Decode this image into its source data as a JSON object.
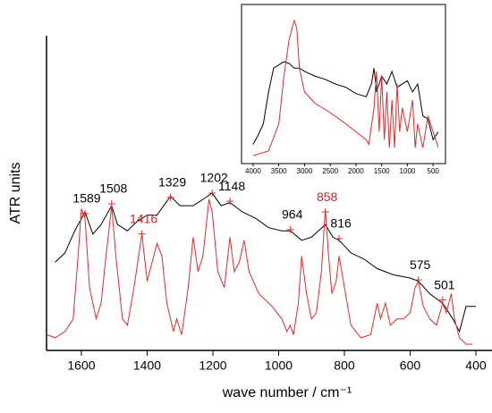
{
  "chart_data": [
    {
      "type": "line",
      "xlabel": "wave number / cm⁻¹",
      "ylabel": "ATR units",
      "xlim": [
        1706,
        351
      ],
      "ylim": [
        0,
        1
      ],
      "xticks": [
        1600,
        1400,
        1200,
        1000,
        800,
        600,
        400
      ],
      "series": [
        {
          "color": "#000000",
          "x": [
            1680,
            1650,
            1620,
            1589,
            1565,
            1540,
            1508,
            1490,
            1460,
            1430,
            1400,
            1370,
            1329,
            1300,
            1260,
            1230,
            1202,
            1175,
            1148,
            1110,
            1070,
            1030,
            990,
            964,
            930,
            900,
            858,
            835,
            816,
            780,
            740,
            700,
            650,
            600,
            575,
            540,
            501,
            470,
            450,
            430,
            400
          ],
          "values": [
            0.28,
            0.31,
            0.38,
            0.44,
            0.37,
            0.4,
            0.46,
            0.4,
            0.38,
            0.41,
            0.43,
            0.43,
            0.49,
            0.46,
            0.46,
            0.48,
            0.5,
            0.46,
            0.47,
            0.44,
            0.42,
            0.39,
            0.38,
            0.38,
            0.35,
            0.36,
            0.4,
            0.36,
            0.35,
            0.31,
            0.29,
            0.26,
            0.24,
            0.23,
            0.22,
            0.18,
            0.15,
            0.1,
            0.06,
            0.14,
            0.14
          ]
        },
        {
          "color": "#e8282b",
          "x": [
            1705,
            1680,
            1650,
            1625,
            1610,
            1600,
            1589,
            1575,
            1555,
            1540,
            1525,
            1508,
            1495,
            1475,
            1460,
            1440,
            1416,
            1400,
            1385,
            1370,
            1355,
            1340,
            1320,
            1310,
            1295,
            1275,
            1260,
            1245,
            1230,
            1212,
            1202,
            1185,
            1165,
            1148,
            1135,
            1120,
            1105,
            1090,
            1060,
            1020,
            990,
            975,
            965,
            955,
            940,
            930,
            915,
            900,
            885,
            870,
            858,
            848,
            838,
            825,
            816,
            800,
            780,
            750,
            720,
            700,
            690,
            675,
            660,
            640,
            620,
            600,
            585,
            575,
            560,
            540,
            520,
            501,
            490,
            475,
            465,
            450,
            430,
            410
          ],
          "values": [
            0.05,
            0.04,
            0.06,
            0.1,
            0.3,
            0.45,
            0.42,
            0.2,
            0.1,
            0.15,
            0.3,
            0.46,
            0.3,
            0.1,
            0.08,
            0.2,
            0.37,
            0.22,
            0.28,
            0.34,
            0.3,
            0.15,
            0.06,
            0.1,
            0.05,
            0.2,
            0.36,
            0.25,
            0.3,
            0.48,
            0.44,
            0.25,
            0.2,
            0.36,
            0.25,
            0.28,
            0.35,
            0.25,
            0.18,
            0.14,
            0.1,
            0.06,
            0.08,
            0.05,
            0.15,
            0.3,
            0.18,
            0.1,
            0.12,
            0.25,
            0.45,
            0.3,
            0.18,
            0.22,
            0.3,
            0.2,
            0.08,
            0.04,
            0.05,
            0.15,
            0.1,
            0.15,
            0.08,
            0.1,
            0.1,
            0.12,
            0.2,
            0.22,
            0.14,
            0.1,
            0.08,
            0.15,
            0.12,
            0.18,
            0.1,
            0.04,
            0.02,
            0.02
          ]
        }
      ],
      "annotations": [
        {
          "label": "1589",
          "x": 1589,
          "y": 0.435,
          "color": "#000000"
        },
        {
          "label": "1508",
          "x": 1508,
          "y": 0.466,
          "color": "#000000"
        },
        {
          "label": "1416",
          "x": 1416,
          "y": 0.37,
          "color": "#c0282b"
        },
        {
          "label": "1329",
          "x": 1329,
          "y": 0.486,
          "color": "#000000"
        },
        {
          "label": "1202",
          "x": 1202,
          "y": 0.5,
          "color": "#000000"
        },
        {
          "label": "1148",
          "x": 1148,
          "y": 0.474,
          "color": "#000000"
        },
        {
          "label": "964",
          "x": 964,
          "y": 0.384,
          "color": "#000000"
        },
        {
          "label": "858",
          "x": 858,
          "y": 0.44,
          "color": "#c0282b"
        },
        {
          "label": "816",
          "x": 816,
          "y": 0.355,
          "color": "#000000"
        },
        {
          "label": "575",
          "x": 575,
          "y": 0.224,
          "color": "#000000"
        },
        {
          "label": "501",
          "x": 501,
          "y": 0.16,
          "color": "#000000"
        }
      ]
    },
    {
      "type": "line",
      "xlim": [
        4225,
        260
      ],
      "ylim": [
        0,
        1
      ],
      "xticks": [
        4000,
        3500,
        3000,
        2500,
        2000,
        1500,
        1000,
        500
      ],
      "series": [
        {
          "color": "#000000",
          "x": [
            4000,
            3900,
            3800,
            3700,
            3600,
            3500,
            3400,
            3300,
            3200,
            3100,
            3000,
            2800,
            2600,
            2400,
            2200,
            2000,
            1800,
            1700,
            1650,
            1600,
            1500,
            1400,
            1300,
            1200,
            1000,
            900,
            800,
            700,
            600,
            500,
            400
          ],
          "values": [
            0.12,
            0.18,
            0.25,
            0.45,
            0.6,
            0.62,
            0.64,
            0.63,
            0.6,
            0.6,
            0.58,
            0.55,
            0.53,
            0.5,
            0.48,
            0.44,
            0.42,
            0.5,
            0.6,
            0.45,
            0.55,
            0.5,
            0.58,
            0.48,
            0.52,
            0.45,
            0.5,
            0.3,
            0.28,
            0.15,
            0.2
          ]
        },
        {
          "color": "#e8282b",
          "x": [
            4000,
            3700,
            3500,
            3400,
            3300,
            3200,
            3150,
            3100,
            3000,
            2800,
            2500,
            2200,
            2000,
            1800,
            1750,
            1650,
            1600,
            1550,
            1500,
            1450,
            1400,
            1350,
            1300,
            1250,
            1200,
            1150,
            1100,
            1000,
            900,
            850,
            800,
            700,
            600,
            500,
            400
          ],
          "values": [
            0.05,
            0.08,
            0.25,
            0.55,
            0.78,
            0.9,
            0.85,
            0.6,
            0.45,
            0.38,
            0.32,
            0.25,
            0.2,
            0.15,
            0.12,
            0.35,
            0.58,
            0.2,
            0.55,
            0.15,
            0.45,
            0.1,
            0.4,
            0.1,
            0.5,
            0.2,
            0.35,
            0.2,
            0.4,
            0.1,
            0.25,
            0.1,
            0.3,
            0.2,
            0.1
          ]
        }
      ]
    }
  ]
}
